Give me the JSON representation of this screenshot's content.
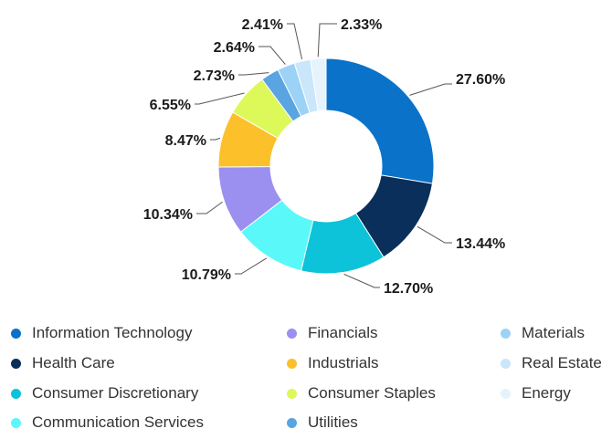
{
  "chart_data": {
    "type": "pie",
    "title": "",
    "categories": [
      "Information Technology",
      "Health Care",
      "Consumer Discretionary",
      "Communication Services",
      "Financials",
      "Industrials",
      "Consumer Staples",
      "Utilities",
      "Materials",
      "Real Estate",
      "Energy"
    ],
    "values": [
      27.6,
      13.44,
      12.7,
      10.79,
      10.34,
      8.47,
      6.55,
      2.73,
      2.64,
      2.41,
      2.33
    ],
    "labels": [
      "27.60%",
      "13.44%",
      "12.70%",
      "10.79%",
      "10.34%",
      "8.47%",
      "6.55%",
      "2.73%",
      "2.64%",
      "2.41%",
      "2.33%"
    ],
    "colors": [
      "#0a72c9",
      "#0b2f5b",
      "#0cc3d9",
      "#5af8f8",
      "#9b8ff0",
      "#fcc02b",
      "#dcf859",
      "#5aa4e2",
      "#9dd2f7",
      "#c9e6fa",
      "#e6f3fc"
    ],
    "donut": true,
    "legend_position": "bottom"
  }
}
